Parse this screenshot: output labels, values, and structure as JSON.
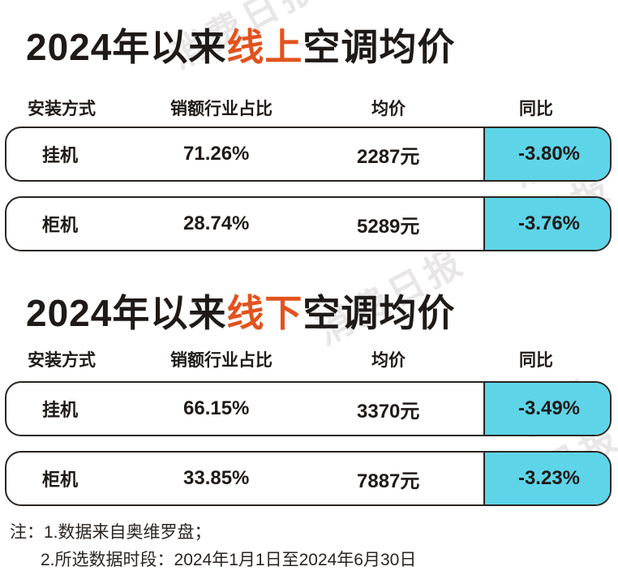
{
  "chart_data": [
    {
      "type": "table",
      "title_parts": [
        "2024年以来",
        "线上",
        "空调均价"
      ],
      "columns": [
        "安装方式",
        "销额行业占比",
        "均价",
        "同比"
      ],
      "rows": [
        {
          "type": "挂机",
          "share": "71.26%",
          "price": "2287元",
          "yoy": "-3.80%"
        },
        {
          "type": "柜机",
          "share": "28.74%",
          "price": "5289元",
          "yoy": "-3.76%"
        }
      ]
    },
    {
      "type": "table",
      "title_parts": [
        "2024年以来",
        "线下",
        "空调均价"
      ],
      "columns": [
        "安装方式",
        "销额行业占比",
        "均价",
        "同比"
      ],
      "rows": [
        {
          "type": "挂机",
          "share": "66.15%",
          "price": "3370元",
          "yoy": "-3.49%"
        },
        {
          "type": "柜机",
          "share": "33.85%",
          "price": "7887元",
          "yoy": "-3.23%"
        }
      ]
    }
  ],
  "notes": {
    "line1": "注：1.数据来自奥维罗盘；",
    "line2": "2.所选数据时段：2024年1月1日至2024年6月30日"
  },
  "watermark": "消费日报",
  "colors": {
    "highlight": "#e2531e",
    "yoy_fill": "#5ed4e8",
    "border": "#2a2522"
  }
}
